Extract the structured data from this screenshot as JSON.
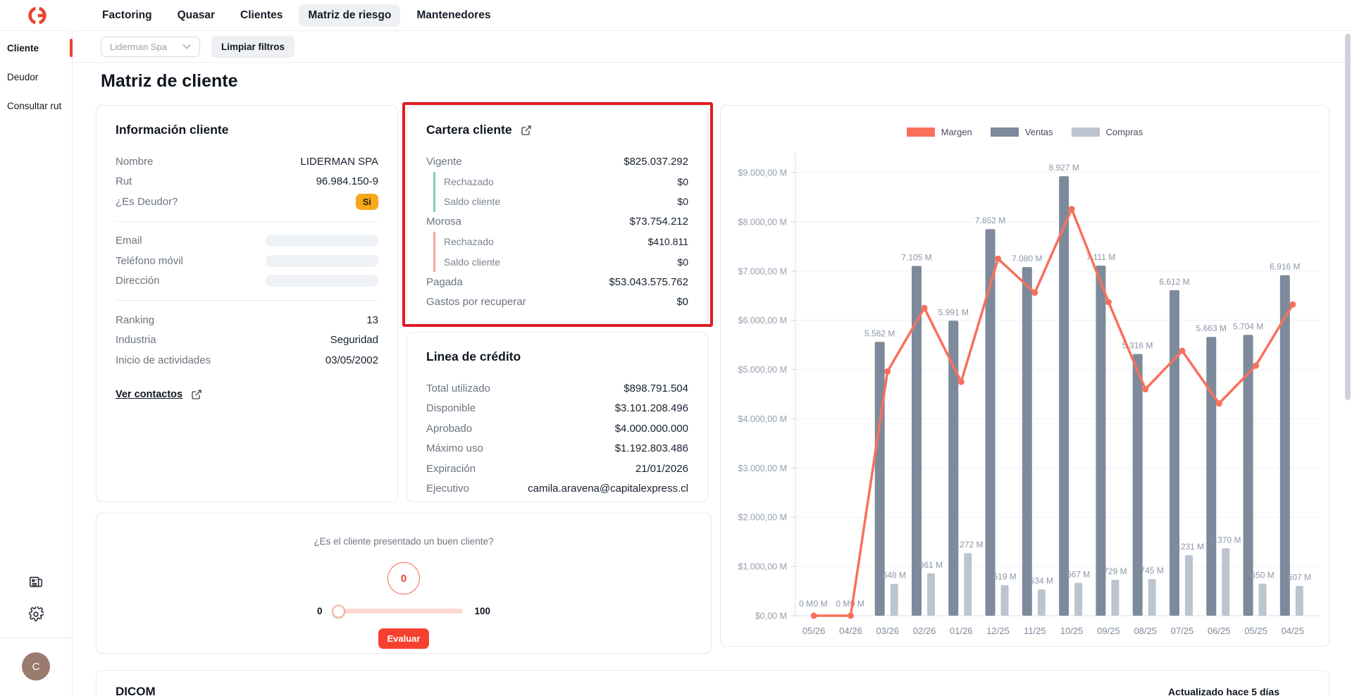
{
  "brand": {
    "color": "#e8432d"
  },
  "nav": {
    "items": [
      {
        "label": "Factoring",
        "active": false
      },
      {
        "label": "Quasar",
        "active": false
      },
      {
        "label": "Clientes",
        "active": false
      },
      {
        "label": "Matriz de riesgo",
        "active": true
      },
      {
        "label": "Mantenedores",
        "active": false
      }
    ]
  },
  "sidebar": {
    "items": [
      {
        "label": "Cliente",
        "active": true
      },
      {
        "label": "Deudor",
        "active": false
      },
      {
        "label": "Consultar rut",
        "active": false
      }
    ],
    "avatar_initial": "C"
  },
  "filters": {
    "client_filter_value": "Liderman Spa",
    "clear_label": "Limpiar filtros"
  },
  "page_title": "Matriz de cliente",
  "info_card": {
    "title": "Información cliente",
    "rows_identity": [
      {
        "label": "Nombre",
        "value": "LIDERMAN SPA"
      },
      {
        "label": "Rut",
        "value": "96.984.150-9"
      },
      {
        "label": "¿Es Deudor?",
        "value": "Si",
        "badge": true
      }
    ],
    "badge_color": "#f7a81b",
    "rows_contact_skeleton": [
      "Email",
      "Teléfono móvil",
      "Dirección"
    ],
    "rows_profile": [
      {
        "label": "Ranking",
        "value": "13"
      },
      {
        "label": "Industria",
        "value": "Seguridad"
      },
      {
        "label": "Inicio de actividades",
        "value": "03/05/2002"
      }
    ],
    "link_label": "Ver contactos"
  },
  "cartera_card": {
    "title": "Cartera cliente",
    "rows": [
      {
        "label": "Vigente",
        "value": "$825.037.292",
        "level": 0
      },
      {
        "label": "Rechazado",
        "value": "$0",
        "level": 1,
        "accent": "#7ed3ae"
      },
      {
        "label": "Saldo cliente",
        "value": "$0",
        "level": 1,
        "accent": "#7ed3ae"
      },
      {
        "label": "Morosa",
        "value": "$73.754.212",
        "level": 0
      },
      {
        "label": "Rechazado",
        "value": "$410.811",
        "level": 1,
        "accent": "#f4a49c"
      },
      {
        "label": "Saldo cliente",
        "value": "$0",
        "level": 1,
        "accent": "#f4a49c"
      },
      {
        "label": "Pagada",
        "value": "$53.043.575.762",
        "level": 0
      },
      {
        "label": "Gastos por recuperar",
        "value": "$0",
        "level": 0
      }
    ]
  },
  "linea_card": {
    "title": "Linea de crédito",
    "rows": [
      {
        "label": "Total utilizado",
        "value": "$898.791.504"
      },
      {
        "label": "Disponible",
        "value": "$3.101.208.496"
      },
      {
        "label": "Aprobado",
        "value": "$4.000.000.000"
      },
      {
        "label": "Máximo uso",
        "value": "$1.192.803.486"
      },
      {
        "label": "Expiración",
        "value": "21/01/2026"
      },
      {
        "label": "Ejecutivo",
        "value": "camila.aravena@capitalexpress.cl"
      }
    ]
  },
  "score_card": {
    "question": "¿Es el cliente presentado un buen cliente?",
    "score": "0",
    "min_label": "0",
    "max_label": "100",
    "button_label": "Evaluar",
    "accent_color": "#f8705c",
    "button_color": "#f6402f"
  },
  "annotation": {
    "type": "highlight-box",
    "around": "cartera-card",
    "color": "#e11b22"
  },
  "bottom_card": {
    "title": "DICOM",
    "right_text": "Actualizado hace 5 días"
  },
  "chart_data": {
    "type": "bar+line",
    "categories": [
      "05/26",
      "04/26",
      "03/26",
      "02/26",
      "01/26",
      "12/25",
      "11/25",
      "10/25",
      "09/25",
      "08/25",
      "07/25",
      "06/25",
      "05/25",
      "04/25"
    ],
    "series": [
      {
        "name": "Margen",
        "type": "line",
        "color": "#f8705c",
        "values": [
          0,
          0,
          4960,
          6250,
          4750,
          7250,
          6560,
          8260,
          6370,
          4600,
          5380,
          4310,
          5080,
          6320
        ]
      },
      {
        "name": "Ventas",
        "type": "bar",
        "color": "#7d8a9b",
        "values": [
          0,
          0,
          5562,
          7105,
          5991,
          7852,
          7080,
          8927,
          7111,
          5316,
          6612,
          5663,
          5704,
          6916
        ]
      },
      {
        "name": "Compras",
        "type": "bar",
        "color": "#bcc5cf",
        "values": [
          0,
          0,
          648,
          861,
          1272,
          619,
          534,
          667,
          729,
          745,
          1231,
          1370,
          650,
          607
        ]
      }
    ],
    "bar_label_suffix": " M",
    "ylim": [
      0,
      9000
    ],
    "y_step": 1000,
    "y_tick_labels": [
      "$0,00 M",
      "$1.000,00 M",
      "$2.000,00 M",
      "$3.000,00 M",
      "$4.000,00 M",
      "$5.000,00 M",
      "$6.000,00 M",
      "$7.000,00 M",
      "$8.000,00 M",
      "$9.000,00 M"
    ],
    "legend_position": "top-center",
    "grid": true
  }
}
